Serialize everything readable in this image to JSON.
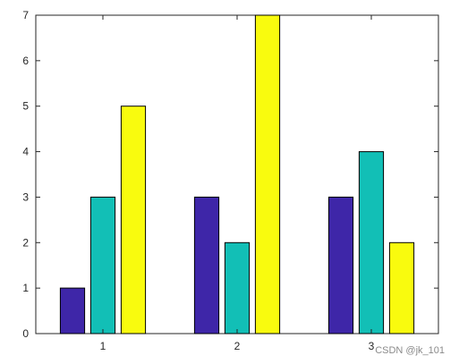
{
  "chart_data": {
    "type": "bar",
    "categories": [
      "1",
      "2",
      "3"
    ],
    "series": [
      {
        "values": [
          1,
          3,
          3
        ],
        "color": "#3e26a8"
      },
      {
        "values": [
          3,
          2,
          4
        ],
        "color": "#12bfb6"
      },
      {
        "values": [
          5,
          7,
          2
        ],
        "color": "#f9fb0e"
      }
    ],
    "title": "",
    "xlabel": "",
    "ylabel": "",
    "ylim": [
      0,
      7
    ],
    "yticks": [
      0,
      1,
      2,
      3,
      4,
      5,
      6,
      7
    ],
    "grid": false,
    "legend": "none"
  },
  "watermark": "CSDN @jk_101"
}
